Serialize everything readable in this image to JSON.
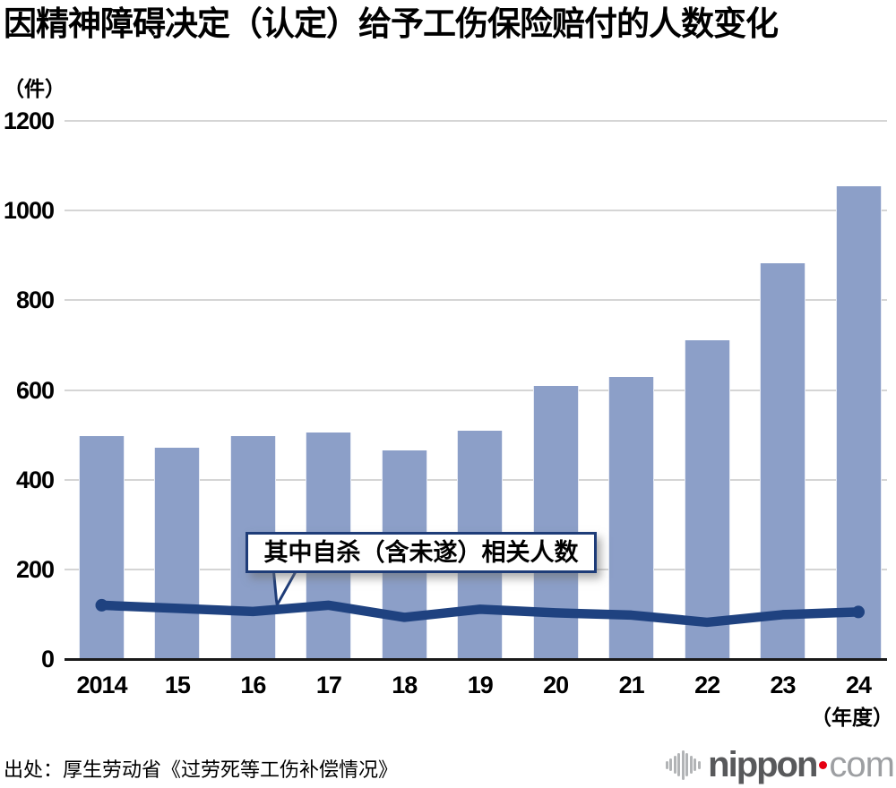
{
  "title": "因精神障碍决定（认定）给予工伤保险赔付的人数变化",
  "y_axis": {
    "unit": "（件）",
    "ticks": [
      0,
      200,
      400,
      600,
      800,
      1000,
      1200
    ]
  },
  "x_axis": {
    "unit": "（年度）"
  },
  "callout": {
    "text": "其中自杀（含未遂）相关人数"
  },
  "footer": {
    "source": "出处：厚生劳动省《过劳死等工伤补偿情况》",
    "logo": {
      "nippon": "nippon",
      "com": "com"
    }
  },
  "colors": {
    "bar": "#8c9fc8",
    "line": "#1f4280",
    "callout_border": "#1e3c78",
    "grid": "#d5d5d5",
    "axis": "#1a1a1a",
    "logo_dot_red": "#e60012"
  },
  "chart_data": {
    "type": "bar",
    "title": "因精神障碍决定（认定）给予工伤保险赔付的人数变化",
    "ylabel": "（件）",
    "xlabel": "（年度）",
    "categories": [
      "2014",
      "15",
      "16",
      "17",
      "18",
      "19",
      "20",
      "21",
      "22",
      "23",
      "24"
    ],
    "series": [
      {
        "name": "因精神障碍决定（认定）给予工伤保险赔付的人数",
        "type": "bar",
        "values": [
          497,
          472,
          498,
          506,
          465,
          509,
          608,
          629,
          710,
          883,
          1055
        ]
      },
      {
        "name": "其中自杀（含未遂）相关人数",
        "type": "line",
        "values": [
          120,
          113,
          106,
          120,
          93,
          111,
          103,
          98,
          82,
          99,
          105
        ]
      }
    ],
    "ylim": [
      0,
      1200
    ],
    "yticks": [
      0,
      200,
      400,
      600,
      800,
      1000,
      1200
    ],
    "grid": true,
    "legend_position": "callout-over-plot"
  }
}
